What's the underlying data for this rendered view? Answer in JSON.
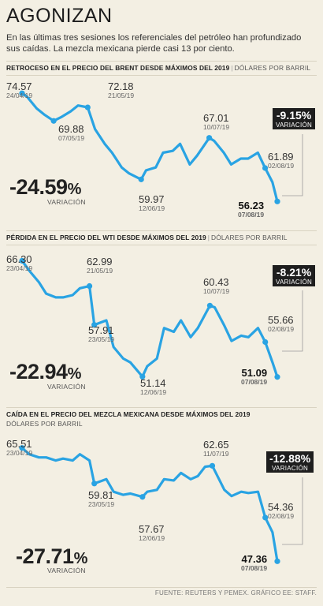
{
  "header": {
    "title": "AGONIZAN",
    "subtitle": "En las últimas tres sesiones los referenciales del petróleo han profundizado sus caídas. La mezcla mexicana pierde casi 13 por ciento."
  },
  "footer": {
    "source": "FUENTE: REUTERS Y PEMEX. GRÁFICO EE: STAFF."
  },
  "colors": {
    "line": "#29a3e3",
    "background": "#f3efe3",
    "badge": "#1e1e1e"
  },
  "panels": [
    {
      "heading": "RETROCESO EN EL PRECIO DEL BRENT DESDE MÁXIMOS DEL 2019",
      "unit": "DÓLARES POR BARRIL",
      "change_big": "-24.59",
      "change_big_unit": "%",
      "change_big_label": "VARIACIÓN",
      "badge_value": "-9.15%",
      "badge_label": "VARIACIÓN",
      "labels": [
        {
          "value": "74.57",
          "date": "24/04/19"
        },
        {
          "value": "69.88",
          "date": "07/05/19"
        },
        {
          "value": "72.18",
          "date": "21/05/19"
        },
        {
          "value": "59.97",
          "date": "12/06/19"
        },
        {
          "value": "67.01",
          "date": "10/07/19"
        },
        {
          "value": "61.89",
          "date": "02/08/19"
        },
        {
          "value": "56.23",
          "date": "07/08/19"
        }
      ]
    },
    {
      "heading": "PÉRDIDA EN EL PRECIO DEL WTI DESDE MÁXIMOS DEL 2019",
      "unit": "DÓLARES POR BARRIL",
      "change_big": "-22.94",
      "change_big_unit": "%",
      "change_big_label": "VARIACIÓN",
      "badge_value": "-8.21%",
      "badge_label": "VARIACIÓN",
      "labels": [
        {
          "value": "66.30",
          "date": "23/04/19"
        },
        {
          "value": "62.99",
          "date": "21/05/19"
        },
        {
          "value": "57.91",
          "date": "23/05/19"
        },
        {
          "value": "51.14",
          "date": "12/06/19"
        },
        {
          "value": "60.43",
          "date": "10/07/19"
        },
        {
          "value": "55.66",
          "date": "02/08/19"
        },
        {
          "value": "51.09",
          "date": "07/08/19"
        }
      ]
    },
    {
      "heading": "CAÍDA EN EL PRECIO DEL MEZCLA MEXICANA DESDE MÁXIMOS DEL 2019",
      "unit": "DÓLARES POR BARRIL",
      "change_big": "-27.71",
      "change_big_unit": "%",
      "change_big_label": "VARIACIÓN",
      "badge_value": "-12.88%",
      "badge_label": "VARIACIÓN",
      "labels": [
        {
          "value": "65.51",
          "date": "23/04/19"
        },
        {
          "value": "59.81",
          "date": "23/05/19"
        },
        {
          "value": "57.67",
          "date": "12/06/19"
        },
        {
          "value": "62.65",
          "date": "11/07/19"
        },
        {
          "value": "54.36",
          "date": "02/08/19"
        },
        {
          "value": "47.36",
          "date": "07/08/19"
        }
      ]
    }
  ],
  "chart_data": [
    {
      "type": "line",
      "series_label": "Brent",
      "unit": "dólares por barril",
      "ylim": [
        54,
        77
      ],
      "x": [
        "2019-04-24",
        "2019-04-26",
        "2019-04-30",
        "2019-05-03",
        "2019-05-07",
        "2019-05-10",
        "2019-05-14",
        "2019-05-17",
        "2019-05-21",
        "2019-05-24",
        "2019-05-28",
        "2019-05-31",
        "2019-06-04",
        "2019-06-07",
        "2019-06-12",
        "2019-06-14",
        "2019-06-18",
        "2019-06-21",
        "2019-06-25",
        "2019-06-28",
        "2019-07-02",
        "2019-07-05",
        "2019-07-10",
        "2019-07-12",
        "2019-07-16",
        "2019-07-19",
        "2019-07-23",
        "2019-07-26",
        "2019-07-30",
        "2019-08-02",
        "2019-08-05",
        "2019-08-07"
      ],
      "values": [
        74.57,
        74.0,
        72.0,
        71.0,
        69.88,
        70.5,
        71.5,
        72.5,
        72.18,
        68.5,
        66.0,
        64.5,
        62.0,
        61.0,
        59.97,
        61.5,
        62.0,
        64.5,
        64.8,
        66.0,
        62.5,
        64.0,
        67.01,
        66.5,
        64.5,
        62.5,
        63.5,
        63.5,
        64.5,
        61.89,
        59.5,
        56.23
      ]
    },
    {
      "type": "line",
      "series_label": "WTI",
      "unit": "dólares por barril",
      "ylim": [
        49,
        68
      ],
      "x": [
        "2019-04-23",
        "2019-04-26",
        "2019-04-30",
        "2019-05-03",
        "2019-05-07",
        "2019-05-10",
        "2019-05-14",
        "2019-05-17",
        "2019-05-21",
        "2019-05-23",
        "2019-05-28",
        "2019-05-31",
        "2019-06-04",
        "2019-06-07",
        "2019-06-12",
        "2019-06-14",
        "2019-06-18",
        "2019-06-21",
        "2019-06-25",
        "2019-06-28",
        "2019-07-02",
        "2019-07-05",
        "2019-07-10",
        "2019-07-12",
        "2019-07-16",
        "2019-07-19",
        "2019-07-23",
        "2019-07-26",
        "2019-07-30",
        "2019-08-02",
        "2019-08-05",
        "2019-08-07"
      ],
      "values": [
        66.3,
        65.0,
        63.5,
        62.0,
        61.5,
        61.5,
        61.8,
        62.7,
        62.99,
        57.91,
        58.5,
        55.0,
        53.5,
        53.0,
        51.14,
        52.5,
        53.5,
        57.5,
        57.0,
        58.5,
        56.3,
        57.5,
        60.43,
        60.2,
        57.8,
        55.8,
        56.5,
        56.3,
        57.5,
        55.66,
        53.0,
        51.09
      ]
    },
    {
      "type": "line",
      "series_label": "Mezcla mexicana",
      "unit": "dólares por barril",
      "ylim": [
        45,
        68
      ],
      "x": [
        "2019-04-23",
        "2019-04-26",
        "2019-04-30",
        "2019-05-03",
        "2019-05-07",
        "2019-05-10",
        "2019-05-14",
        "2019-05-17",
        "2019-05-21",
        "2019-05-23",
        "2019-05-28",
        "2019-05-31",
        "2019-06-04",
        "2019-06-07",
        "2019-06-12",
        "2019-06-14",
        "2019-06-18",
        "2019-06-21",
        "2019-06-25",
        "2019-06-28",
        "2019-07-02",
        "2019-07-05",
        "2019-07-08",
        "2019-07-11",
        "2019-07-16",
        "2019-07-19",
        "2019-07-23",
        "2019-07-26",
        "2019-07-30",
        "2019-08-02",
        "2019-08-05",
        "2019-08-07"
      ],
      "values": [
        65.51,
        64.5,
        64.0,
        64.0,
        63.5,
        63.8,
        63.5,
        64.5,
        63.5,
        59.81,
        60.5,
        58.5,
        58.0,
        58.2,
        57.67,
        58.5,
        58.8,
        60.5,
        60.3,
        61.5,
        60.5,
        61.0,
        62.5,
        62.65,
        58.8,
        57.8,
        58.5,
        58.3,
        58.5,
        54.36,
        52.0,
        47.36
      ]
    }
  ]
}
